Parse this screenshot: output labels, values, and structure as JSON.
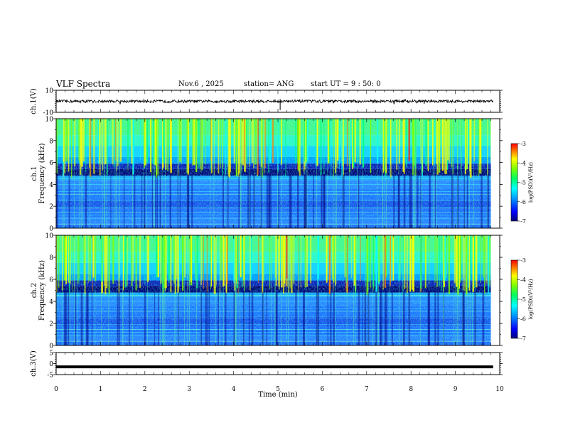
{
  "header": {
    "title": "VLF Spectra",
    "date": "Nov.6 , 2025",
    "station": "station= ANG",
    "start": "start UT = 9 : 50: 0"
  },
  "chart_data": [
    {
      "type": "line",
      "panel": "ch1-waveform",
      "ylabel": "ch.1(V)",
      "ylim": [
        -10,
        10
      ],
      "yticks": [
        10,
        -10
      ],
      "xlim": [
        0,
        10
      ],
      "mean_level": 0,
      "approx_amplitude": 1.2
    },
    {
      "type": "heatmap",
      "panel": "ch1-spectrogram",
      "ylabel_channel": "ch.1",
      "ylabel": "Frequency (kHz)",
      "ylim": [
        0,
        10
      ],
      "yticks": [
        0,
        2,
        4,
        6,
        8,
        10
      ],
      "xlim": [
        0,
        9.8
      ],
      "colorbar": {
        "label": "log(PSD)(V²/Hz)",
        "range": [
          -7,
          -3
        ],
        "ticks": [
          -3,
          -4,
          -5,
          -6,
          -7
        ]
      }
    },
    {
      "type": "heatmap",
      "panel": "ch2-spectrogram",
      "ylabel_channel": "ch.2",
      "ylabel": "Frequency (kHz)",
      "ylim": [
        0,
        10
      ],
      "yticks": [
        0,
        2,
        4,
        6,
        8,
        10
      ],
      "xlim": [
        0,
        9.8
      ],
      "colorbar": {
        "label": "log(PSD)(V²/Hz)",
        "range": [
          -7,
          -3
        ],
        "ticks": [
          -3,
          -4,
          -5,
          -6,
          -7
        ]
      }
    },
    {
      "type": "line",
      "panel": "ch3-waveform",
      "ylabel": "ch.3(V)",
      "ylim": [
        -5,
        5
      ],
      "yticks": [
        5,
        0,
        -5
      ],
      "xlim": [
        0,
        10
      ],
      "mean_level": -1.5
    }
  ],
  "xaxis": {
    "label": "Time (min)",
    "range": [
      0,
      10
    ],
    "ticks": [
      0,
      1,
      2,
      3,
      4,
      5,
      6,
      7,
      8,
      9,
      10
    ]
  },
  "colors": {
    "colormap": [
      "#00007a",
      "#0000ff",
      "#00a0ff",
      "#00ffff",
      "#00ff60",
      "#80ff00",
      "#ffff00",
      "#ff8000",
      "#ff0000"
    ]
  }
}
